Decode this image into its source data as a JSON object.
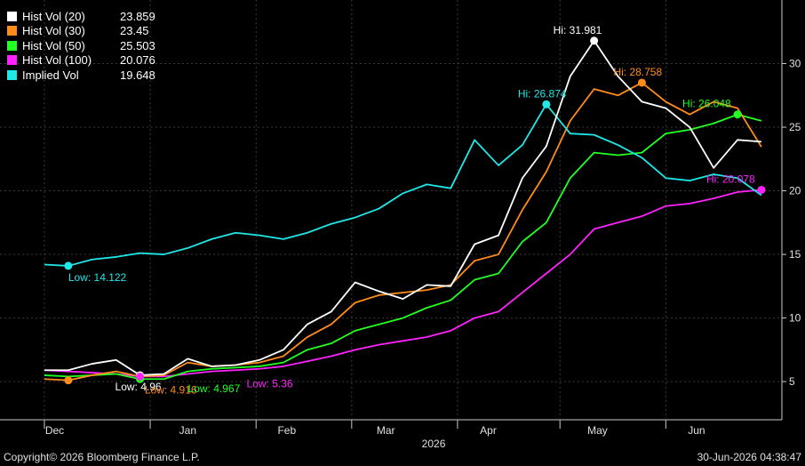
{
  "chart_data": {
    "type": "line",
    "ylim": [
      2,
      35
    ],
    "y_ticks": [
      5,
      10,
      15,
      20,
      25,
      30
    ],
    "grid": true,
    "legend_placement": "top-left",
    "x_month_labels": [
      "Dec",
      "Jan",
      "Feb",
      "Mar",
      "Apr",
      "May",
      "Jun"
    ],
    "x_year_label": "2026",
    "x": [
      "2025-12-01",
      "2025-12-08",
      "2025-12-15",
      "2025-12-22",
      "2025-12-29",
      "2026-01-05",
      "2026-01-12",
      "2026-01-19",
      "2026-01-26",
      "2026-02-02",
      "2026-02-09",
      "2026-02-16",
      "2026-02-23",
      "2026-03-02",
      "2026-03-09",
      "2026-03-16",
      "2026-03-23",
      "2026-03-30",
      "2026-04-06",
      "2026-04-13",
      "2026-04-20",
      "2026-04-27",
      "2026-05-04",
      "2026-05-11",
      "2026-05-18",
      "2026-05-25",
      "2026-06-01",
      "2026-06-08",
      "2026-06-15",
      "2026-06-22",
      "2026-06-29"
    ],
    "series": [
      {
        "name": "Hist Vol (20)",
        "last": "23.859",
        "color": "#ffffff",
        "values": [
          5.9,
          5.9,
          6.4,
          6.7,
          5.5,
          5.6,
          6.8,
          6.2,
          6.3,
          6.7,
          7.5,
          9.5,
          10.5,
          12.8,
          12.1,
          11.5,
          12.6,
          12.5,
          15.8,
          16.5,
          21.0,
          23.5,
          29.0,
          31.8,
          29.0,
          27.0,
          26.5,
          25.0,
          21.8,
          24.0,
          23.859
        ]
      },
      {
        "name": "Hist Vol (30)",
        "last": "23.45",
        "color": "#ff8c1a",
        "values": [
          5.2,
          5.1,
          5.5,
          5.8,
          5.4,
          5.5,
          6.5,
          6.2,
          6.3,
          6.5,
          7.0,
          8.5,
          9.5,
          11.2,
          11.8,
          12.0,
          12.2,
          12.6,
          14.5,
          15.0,
          18.5,
          21.5,
          25.5,
          28.0,
          27.5,
          28.5,
          27.0,
          26.0,
          27.0,
          26.5,
          23.45
        ]
      },
      {
        "name": "Hist Vol (50)",
        "last": "25.503",
        "color": "#22ff22",
        "values": [
          5.5,
          5.4,
          5.5,
          5.6,
          5.2,
          5.2,
          5.8,
          6.0,
          6.1,
          6.2,
          6.5,
          7.5,
          8.0,
          9.0,
          9.5,
          10.0,
          10.8,
          11.4,
          13.0,
          13.5,
          16.0,
          17.5,
          21.0,
          23.0,
          22.8,
          23.0,
          24.5,
          24.8,
          25.3,
          26.0,
          25.503
        ]
      },
      {
        "name": "Hist Vol (100)",
        "last": "20.076",
        "color": "#ff22ff",
        "values": [
          5.9,
          5.8,
          5.7,
          5.6,
          5.4,
          5.4,
          5.6,
          5.8,
          5.9,
          6.0,
          6.2,
          6.6,
          7.0,
          7.5,
          7.9,
          8.2,
          8.5,
          9.0,
          10.0,
          10.5,
          12.0,
          13.5,
          15.0,
          17.0,
          17.5,
          18.0,
          18.8,
          19.0,
          19.4,
          19.9,
          20.076
        ]
      },
      {
        "name": "Implied Vol",
        "last": "19.648",
        "color": "#1ee8e8",
        "values": [
          14.2,
          14.1,
          14.6,
          14.8,
          15.1,
          15.0,
          15.5,
          16.2,
          16.7,
          16.5,
          16.2,
          16.7,
          17.4,
          17.9,
          18.6,
          19.8,
          20.5,
          20.2,
          24.0,
          22.0,
          23.6,
          26.8,
          24.5,
          24.4,
          23.6,
          22.6,
          21.0,
          20.8,
          21.3,
          21.0,
          19.648
        ]
      }
    ],
    "annotations": [
      {
        "text": "Hi: 31.981",
        "color": "#ffffff"
      },
      {
        "text": "Hi: 28.758",
        "color": "#ff8c1a"
      },
      {
        "text": "Hi: 26.874",
        "color": "#1ee8e8"
      },
      {
        "text": "Hi: 26.048",
        "color": "#22ff22"
      },
      {
        "text": "Hi: 20.078",
        "color": "#ff22ff"
      },
      {
        "text": "Low: 14.122",
        "color": "#1ee8e8"
      },
      {
        "text": "Low: 4.96",
        "color": "#ffffff"
      },
      {
        "text": "Low: 4.916",
        "color": "#ff8c1a"
      },
      {
        "text": "Low: 4.967",
        "color": "#22ff22"
      },
      {
        "text": "Low: 5.36",
        "color": "#ff22ff"
      }
    ]
  },
  "footer": {
    "copyright": "Copyright© 2026 Bloomberg Finance L.P.",
    "timestamp": "30-Jun-2026 04:38:47"
  }
}
